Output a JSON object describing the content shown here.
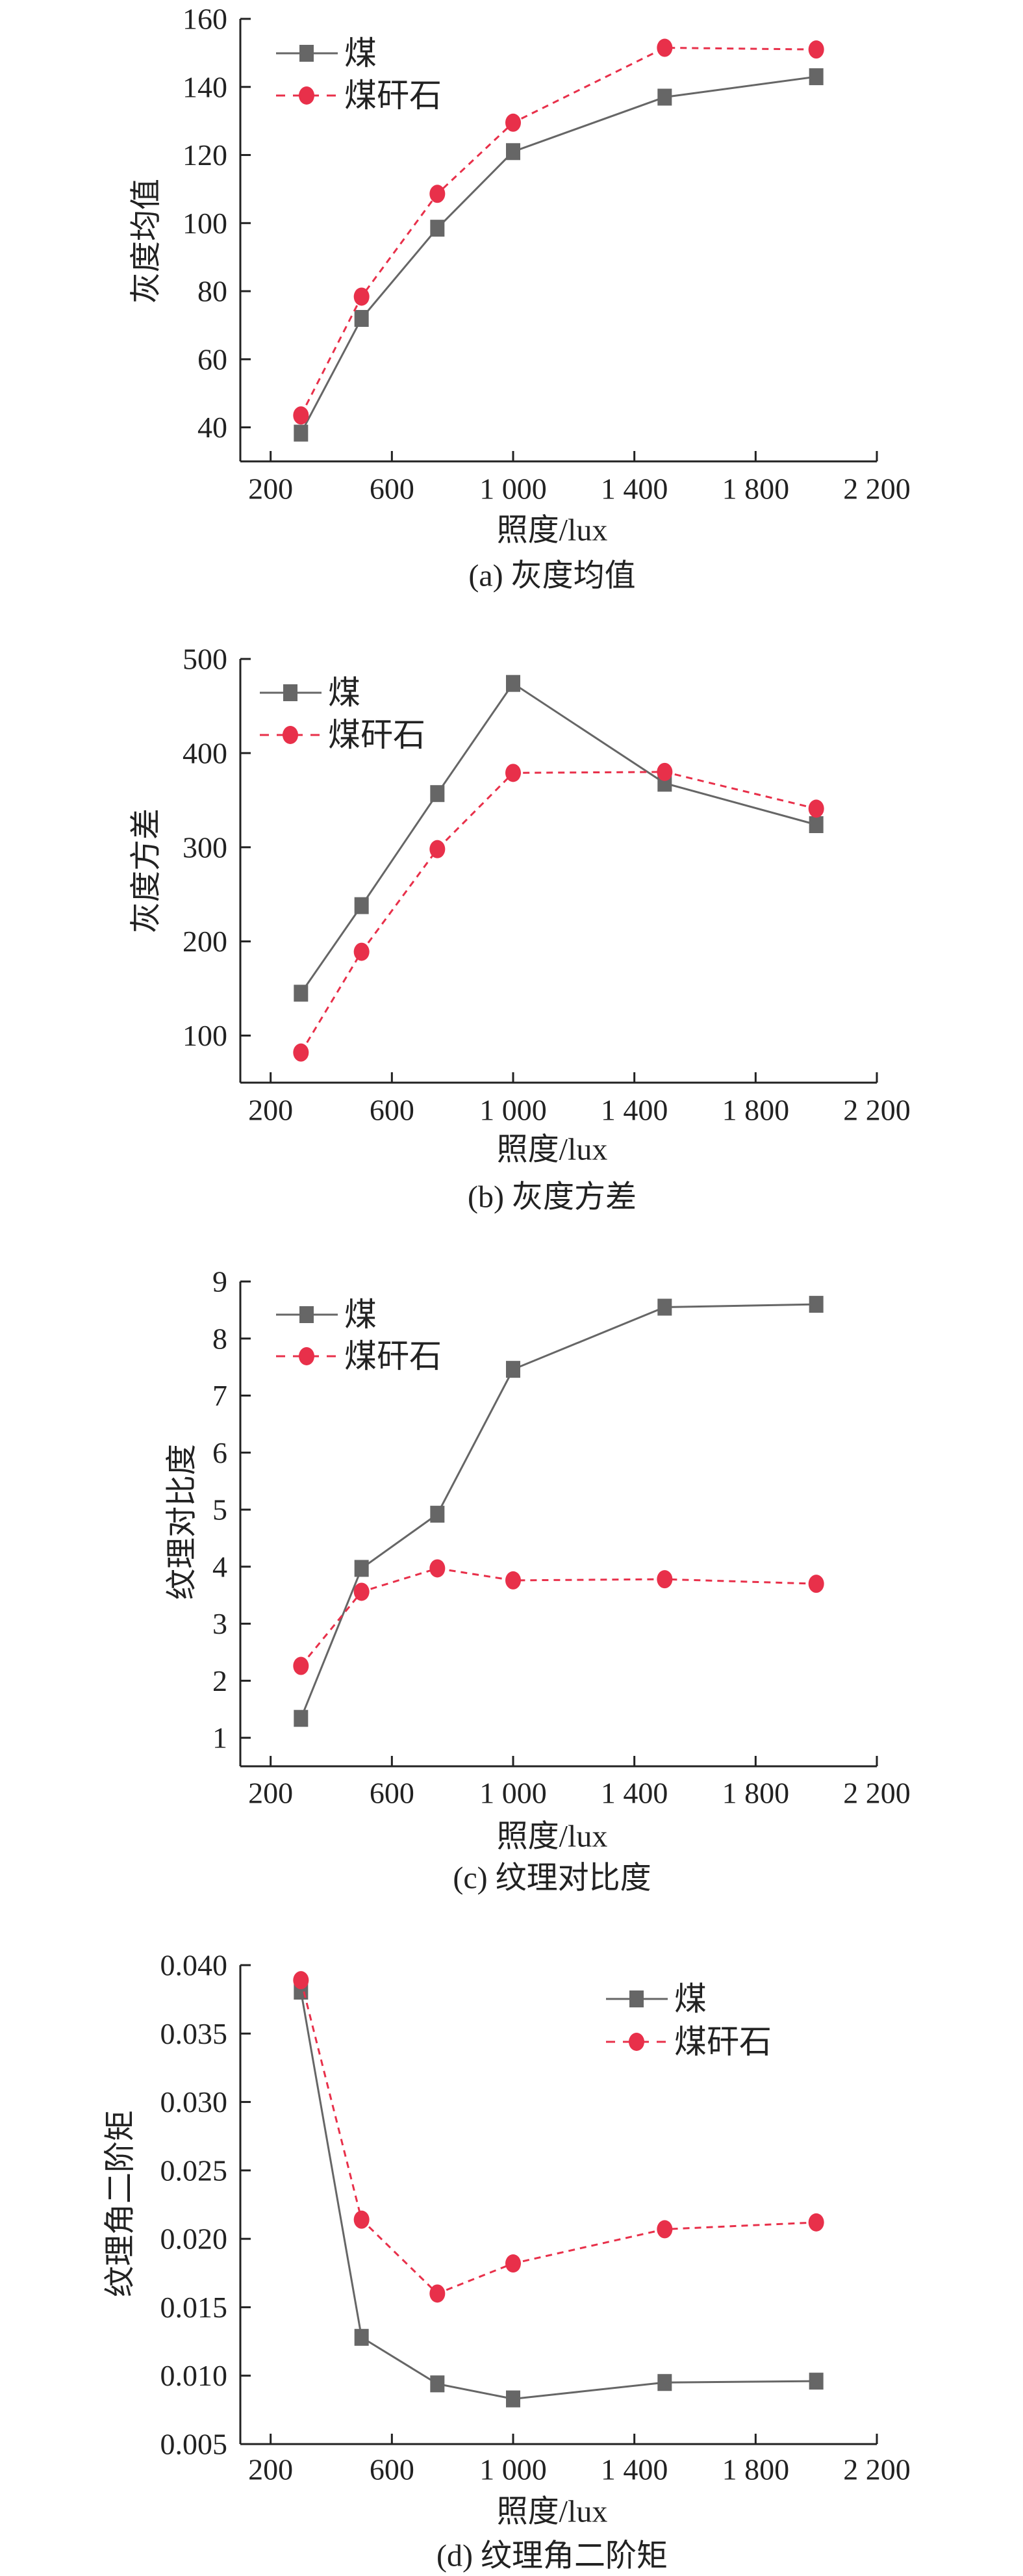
{
  "legend": {
    "coal": "煤",
    "gangue": "煤矸石"
  },
  "colors": {
    "coal": "#666666",
    "gangue": "#e8304a",
    "axis": "#222222"
  },
  "chart_data": [
    {
      "type": "line",
      "caption": "(a) 灰度均值",
      "xlabel": "照度/lux",
      "ylabel": "灰度均值",
      "x": [
        300,
        500,
        750,
        1000,
        1500,
        2000
      ],
      "xlim": [
        100,
        2200
      ],
      "xticks": [
        200,
        600,
        1000,
        1400,
        1800,
        2200
      ],
      "xticklabels": [
        "200",
        "600",
        "1 000",
        "1 400",
        "1 800",
        "2 200"
      ],
      "ylim": [
        30,
        160
      ],
      "yticks": [
        40,
        60,
        80,
        100,
        120,
        140,
        160
      ],
      "yticklabels": [
        "40",
        "60",
        "80",
        "100",
        "120",
        "140",
        "160"
      ],
      "legend_position": "top-left",
      "grid": false,
      "series": [
        {
          "name": "煤",
          "key": "coal",
          "marker": "square",
          "line": "solid",
          "values": [
            38.3,
            72,
            98.5,
            121,
            137,
            143
          ]
        },
        {
          "name": "煤矸石",
          "key": "gangue",
          "marker": "circle",
          "line": "dashed",
          "values": [
            43.5,
            78.4,
            108.6,
            129.5,
            151.5,
            151
          ]
        }
      ]
    },
    {
      "type": "line",
      "caption": "(b) 灰度方差",
      "xlabel": "照度/lux",
      "ylabel": "灰度方差",
      "x": [
        300,
        500,
        750,
        1000,
        1500,
        2000
      ],
      "xlim": [
        100,
        2200
      ],
      "xticks": [
        200,
        600,
        1000,
        1400,
        1800,
        2200
      ],
      "xticklabels": [
        "200",
        "600",
        "1 000",
        "1 400",
        "1 800",
        "2 200"
      ],
      "ylim": [
        50,
        500
      ],
      "yticks": [
        100,
        200,
        300,
        400,
        500
      ],
      "yticklabels": [
        "100",
        "200",
        "300",
        "400",
        "500"
      ],
      "legend_position": "top-left",
      "grid": false,
      "series": [
        {
          "name": "煤",
          "key": "coal",
          "marker": "square",
          "line": "solid",
          "values": [
            145,
            238,
            357,
            474,
            368,
            324
          ]
        },
        {
          "name": "煤矸石",
          "key": "gangue",
          "marker": "circle",
          "line": "dashed",
          "values": [
            82,
            189,
            298,
            379,
            380,
            341
          ]
        }
      ]
    },
    {
      "type": "line",
      "caption": "(c) 纹理对比度",
      "xlabel": "照度/lux",
      "ylabel": "纹理对比度",
      "x": [
        300,
        500,
        750,
        1000,
        1500,
        2000
      ],
      "xlim": [
        100,
        2200
      ],
      "xticks": [
        200,
        600,
        1000,
        1400,
        1800,
        2200
      ],
      "xticklabels": [
        "200",
        "600",
        "1 000",
        "1 400",
        "1 800",
        "2 200"
      ],
      "ylim": [
        0.5,
        9
      ],
      "yticks": [
        1,
        2,
        3,
        4,
        5,
        6,
        7,
        8,
        9
      ],
      "yticklabels": [
        "1",
        "2",
        "3",
        "4",
        "5",
        "6",
        "7",
        "8",
        "9"
      ],
      "legend_position": "top-left",
      "grid": false,
      "series": [
        {
          "name": "煤",
          "key": "coal",
          "marker": "square",
          "line": "solid",
          "values": [
            1.34,
            3.97,
            4.92,
            7.46,
            8.55,
            8.6
          ]
        },
        {
          "name": "煤矸石",
          "key": "gangue",
          "marker": "circle",
          "line": "dashed",
          "values": [
            2.26,
            3.56,
            3.97,
            3.76,
            3.78,
            3.7
          ]
        }
      ]
    },
    {
      "type": "line",
      "caption": "(d) 纹理角二阶矩",
      "xlabel": "照度/lux",
      "ylabel": "纹理角二阶矩",
      "x": [
        300,
        500,
        750,
        1000,
        1500,
        2000
      ],
      "xlim": [
        100,
        2200
      ],
      "xticks": [
        200,
        600,
        1000,
        1400,
        1800,
        2200
      ],
      "xticklabels": [
        "200",
        "600",
        "1 000",
        "1 400",
        "1 800",
        "2 200"
      ],
      "ylim": [
        0.005,
        0.04
      ],
      "yticks": [
        0.005,
        0.01,
        0.015,
        0.02,
        0.025,
        0.03,
        0.035,
        0.04
      ],
      "yticklabels": [
        "0.005",
        "0.010",
        "0.015",
        "0.020",
        "0.025",
        "0.030",
        "0.035",
        "0.040"
      ],
      "legend_position": "top-right",
      "grid": false,
      "series": [
        {
          "name": "煤",
          "key": "coal",
          "marker": "square",
          "line": "solid",
          "values": [
            0.0381,
            0.0128,
            0.0094,
            0.0083,
            0.0095,
            0.0096
          ]
        },
        {
          "name": "煤矸石",
          "key": "gangue",
          "marker": "circle",
          "line": "dashed",
          "values": [
            0.0389,
            0.0214,
            0.016,
            0.0182,
            0.0207,
            0.0212
          ]
        }
      ]
    }
  ]
}
